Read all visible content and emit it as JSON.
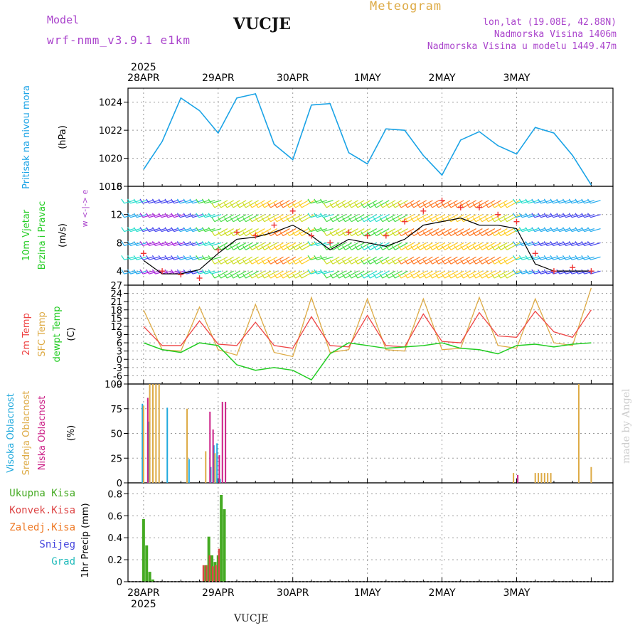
{
  "header": {
    "model_label": "Model",
    "model_name": "wrf-nmm_v3.9.1 e1km",
    "station": "VUCJE",
    "product": "Meteogram",
    "coords": "lon,lat (19.08E, 42.88N)",
    "elevation": "Nadmorska Visina 1406m",
    "model_elevation": "Nadmorska Visina u modelu 1449.47m",
    "footer_station": "VUCJE",
    "credit": "made by Angel"
  },
  "colors": {
    "pressure": "#1aa3e6",
    "temp_2m": "#ee4444",
    "temp_sfc": "#ddaa44",
    "dewpoint": "#22cc22",
    "cloud_high": "#22aadd",
    "cloud_mid": "#ddaa44",
    "cloud_low": "#cc2288",
    "precip_total": "#44aa22",
    "precip_conv": "#dd4444",
    "precip_frz": "#ee7722",
    "precip_snow": "#4444dd",
    "precip_grad": "#22bbbb",
    "header_purple": "#aa44cc"
  },
  "chart_data": [
    {
      "type": "line",
      "panel": "pressure",
      "ylabel_lines": [
        "Pritisak na nivou mora",
        "(hPa)"
      ],
      "ylim": [
        1018,
        1025
      ],
      "yticks": [
        "1018",
        "1020",
        "1022",
        "1024"
      ],
      "top_axis_year": "2025",
      "x_day_labels": [
        "28APR",
        "29APR",
        "30APR",
        "1MAY",
        "2MAY",
        "3MAY"
      ],
      "x_hours_from_start": [
        0,
        6,
        12,
        18,
        24,
        30,
        36,
        42,
        48,
        54,
        60,
        66,
        72,
        78,
        84,
        90,
        96,
        102,
        108,
        114,
        120,
        126,
        132,
        138,
        144
      ],
      "series": [
        {
          "name": "Pritisak na nivou mora",
          "values": [
            1019.2,
            1021.2,
            1024.3,
            1023.4,
            1021.8,
            1024.3,
            1024.6,
            1021.0,
            1019.9,
            1023.8,
            1023.9,
            1020.4,
            1019.6,
            1022.1,
            1022.0,
            1020.2,
            1018.8,
            1021.3,
            1021.9,
            1020.9,
            1020.3,
            1022.2,
            1021.8,
            1020.2,
            1018.1
          ]
        }
      ]
    },
    {
      "type": "line",
      "panel": "wind",
      "ylabel_lines": [
        "10m Vjetar",
        "Brzina i Pravac",
        "(m/s)"
      ],
      "direction_legend": "w <-|-> e",
      "ylim": [
        2,
        16
      ],
      "yticks": [
        "4",
        "8",
        "12",
        "16"
      ],
      "x_hours_from_start": [
        0,
        6,
        12,
        18,
        24,
        30,
        36,
        42,
        48,
        54,
        60,
        66,
        72,
        78,
        84,
        90,
        96,
        102,
        108,
        114,
        120,
        126,
        132,
        138,
        144
      ],
      "series": [
        {
          "name": "10m Vjetar",
          "values": [
            5.5,
            3.6,
            3.6,
            4.2,
            6.5,
            8.5,
            8.8,
            9.5,
            10.5,
            9.0,
            7.0,
            8.5,
            8.0,
            7.5,
            8.5,
            10.5,
            11.0,
            11.5,
            10.5,
            10.5,
            10.0,
            5.0,
            4.0,
            4.0,
            4.0
          ]
        },
        {
          "name": "gust",
          "values": [
            6.5,
            4.0,
            3.5,
            3.0,
            7.0,
            9.5,
            9.0,
            10.5,
            12.5,
            9.0,
            8.0,
            9.5,
            9.0,
            9.0,
            11.0,
            12.5,
            14.0,
            13.0,
            13.0,
            12.0,
            11.0,
            6.5,
            4.0,
            4.5,
            4.0
          ]
        }
      ]
    },
    {
      "type": "line",
      "panel": "temperature",
      "ylabel_lines": [
        "2m Temp",
        "SFC Temp",
        "dewpt Temp",
        "(C)"
      ],
      "ylim": [
        -9,
        27
      ],
      "yticks": [
        "-9",
        "-6",
        "-3",
        "0",
        "3",
        "6",
        "9",
        "12",
        "15",
        "18",
        "21",
        "24",
        "27"
      ],
      "x_hours_from_start": [
        0,
        6,
        12,
        18,
        24,
        30,
        36,
        42,
        48,
        54,
        60,
        66,
        72,
        78,
        84,
        90,
        96,
        102,
        108,
        114,
        120,
        126,
        132,
        138,
        144
      ],
      "series": [
        {
          "name": "2m Temp",
          "values": [
            12.0,
            5.0,
            5.0,
            14.0,
            5.5,
            5.0,
            13.5,
            5.0,
            4.0,
            15.5,
            5.0,
            4.5,
            16.0,
            5.0,
            4.5,
            16.5,
            6.5,
            6.0,
            17.0,
            8.5,
            8.0,
            17.5,
            10.0,
            8.0,
            18.0
          ]
        },
        {
          "name": "SFC Temp",
          "values": [
            18.0,
            3.5,
            3.0,
            19.0,
            3.5,
            1.5,
            20.0,
            2.5,
            1.0,
            22.5,
            2.5,
            3.5,
            22.0,
            3.5,
            3.0,
            22.0,
            3.5,
            4.0,
            22.5,
            5.0,
            4.0,
            22.0,
            6.0,
            5.0,
            26.0
          ]
        },
        {
          "name": "dewpt Temp",
          "values": [
            6.0,
            3.5,
            2.5,
            6.0,
            5.0,
            -2.0,
            -4.0,
            -3.0,
            -4.0,
            -7.5,
            2.0,
            6.0,
            5.0,
            4.0,
            4.5,
            5.0,
            6.0,
            4.0,
            3.5,
            2.0,
            5.0,
            5.5,
            4.5,
            5.5,
            6.0
          ]
        }
      ]
    },
    {
      "type": "bar",
      "panel": "cloud",
      "ylabel_lines": [
        "Visoka Oblacnost",
        "Srednja Oblacnost",
        "Niska Oblacnost",
        "(%)"
      ],
      "ylim": [
        0,
        100
      ],
      "yticks": [
        "0",
        "25",
        "50",
        "75",
        "100"
      ],
      "series": [
        {
          "name": "Visoka Oblacnost",
          "hours": [
            0,
            2,
            8,
            15,
            22,
            23,
            24,
            25
          ],
          "values": [
            80,
            62,
            76,
            24,
            16,
            38,
            40,
            4
          ]
        },
        {
          "name": "Srednja Oblacnost",
          "hours": [
            0,
            2,
            3,
            4,
            5,
            14,
            20,
            23,
            119,
            126,
            127,
            128,
            129,
            130,
            131,
            140,
            144
          ],
          "values": [
            78,
            100,
            100,
            100,
            100,
            75,
            32,
            30,
            10,
            10,
            10,
            10,
            10,
            10,
            10,
            100,
            16
          ]
        },
        {
          "name": "Niska Oblacnost",
          "hours": [
            1,
            21,
            22,
            24,
            25,
            26,
            120
          ],
          "values": [
            86,
            72,
            54,
            28,
            82,
            82,
            8
          ]
        }
      ]
    },
    {
      "type": "bar",
      "panel": "precip",
      "ylabel_lines": [
        "1hr Precip (mm)"
      ],
      "legend": [
        "Ukupna Kisa",
        "Konvek.Kisa",
        "Zaledj.Kisa",
        "Snijeg",
        "Grad"
      ],
      "ylim": [
        0,
        0.9
      ],
      "yticks": [
        "0",
        "0.2",
        "0.4",
        "0.6",
        "0.8"
      ],
      "bottom_axis_year": "2025",
      "series": [
        {
          "name": "Ukupna Kisa",
          "hours": [
            0,
            1,
            2,
            3,
            20,
            21,
            22,
            23,
            24,
            25,
            26
          ],
          "values": [
            0.57,
            0.33,
            0.09,
            0.02,
            0.15,
            0.41,
            0.24,
            0.18,
            0.24,
            0.79,
            0.66
          ]
        },
        {
          "name": "Konvek.Kisa",
          "hours": [
            20,
            21,
            22,
            23,
            24,
            25
          ],
          "values": [
            0.15,
            0.15,
            0.24,
            0.14,
            0.15,
            0.3
          ]
        }
      ]
    }
  ]
}
